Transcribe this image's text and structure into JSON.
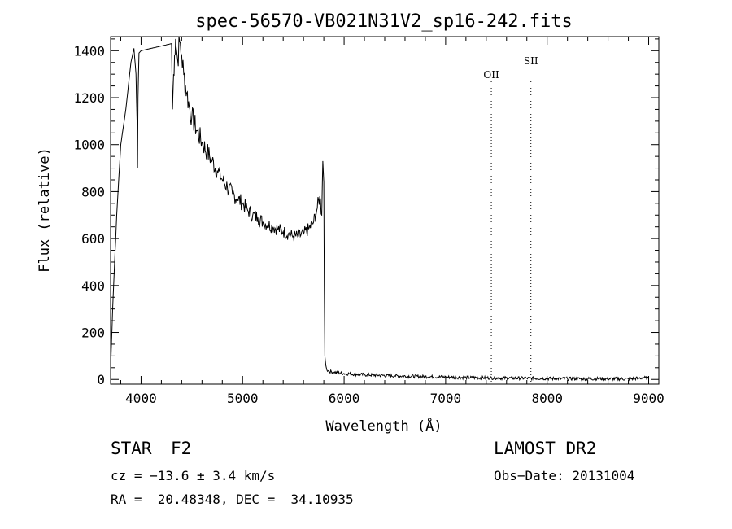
{
  "chart_data": {
    "type": "line",
    "title": "spec-56570-VB021N31V2_sp16-242.fits",
    "xlabel": "Wavelength (Å)",
    "ylabel": "Flux (relative)",
    "xlim": [
      3700,
      9100
    ],
    "ylim": [
      -20,
      1460
    ],
    "x_ticks": [
      4000,
      5000,
      6000,
      7000,
      8000,
      9000
    ],
    "y_ticks": [
      0,
      200,
      400,
      600,
      800,
      1000,
      1200,
      1400
    ],
    "grid": false,
    "color": "#000000",
    "series": [
      {
        "x": [
          3700,
          3720,
          3760,
          3800,
          3850,
          3900,
          3930,
          3950,
          3960,
          3965,
          3970,
          3975,
          3980,
          4000,
          4100,
          4200,
          4250,
          4300,
          4310,
          4320,
          4330,
          4340,
          4350,
          4360,
          4380,
          4400,
          4420,
          4450,
          4480,
          4500,
          4550,
          4600,
          4650,
          4700,
          4750,
          4800,
          4850,
          4900,
          4950,
          5000,
          5050,
          5100,
          5150,
          5200,
          5250,
          5300,
          5350,
          5400,
          5450,
          5500,
          5550,
          5600,
          5650,
          5700,
          5730,
          5760,
          5780,
          5790,
          5800,
          5805,
          5810,
          5820,
          5830,
          5850,
          5900,
          6000,
          6200,
          6500,
          6800,
          7000,
          7200,
          7500,
          7800,
          8000,
          8200,
          8500,
          8800,
          8900,
          8950,
          9000
        ],
        "y": [
          40,
          300,
          700,
          1000,
          1150,
          1350,
          1410,
          1300,
          1100,
          900,
          1200,
          1300,
          1390,
          1400,
          1410,
          1420,
          1425,
          1430,
          1150,
          1300,
          1380,
          1450,
          1400,
          1360,
          1440,
          1380,
          1300,
          1220,
          1150,
          1120,
          1060,
          1010,
          970,
          930,
          890,
          850,
          820,
          790,
          770,
          750,
          720,
          700,
          690,
          670,
          660,
          650,
          640,
          630,
          620,
          610,
          610,
          620,
          640,
          670,
          720,
          780,
          700,
          930,
          840,
          400,
          100,
          60,
          40,
          35,
          30,
          25,
          20,
          15,
          12,
          10,
          8,
          6,
          5,
          4,
          3,
          3,
          2,
          5,
          8,
          3
        ]
      }
    ],
    "vlines": [
      {
        "label": "OII",
        "x": 7450
      },
      {
        "label": "SII",
        "x": 7840
      }
    ]
  },
  "info": {
    "object_class": "STAR",
    "subclass": "F2",
    "survey": "LAMOST DR2",
    "cz": "cz = −13.6 ± 3.4 km/s",
    "obs_date": "Obs−Date: 20131004",
    "coords": "RA =  20.48348, DEC =  34.10935"
  }
}
